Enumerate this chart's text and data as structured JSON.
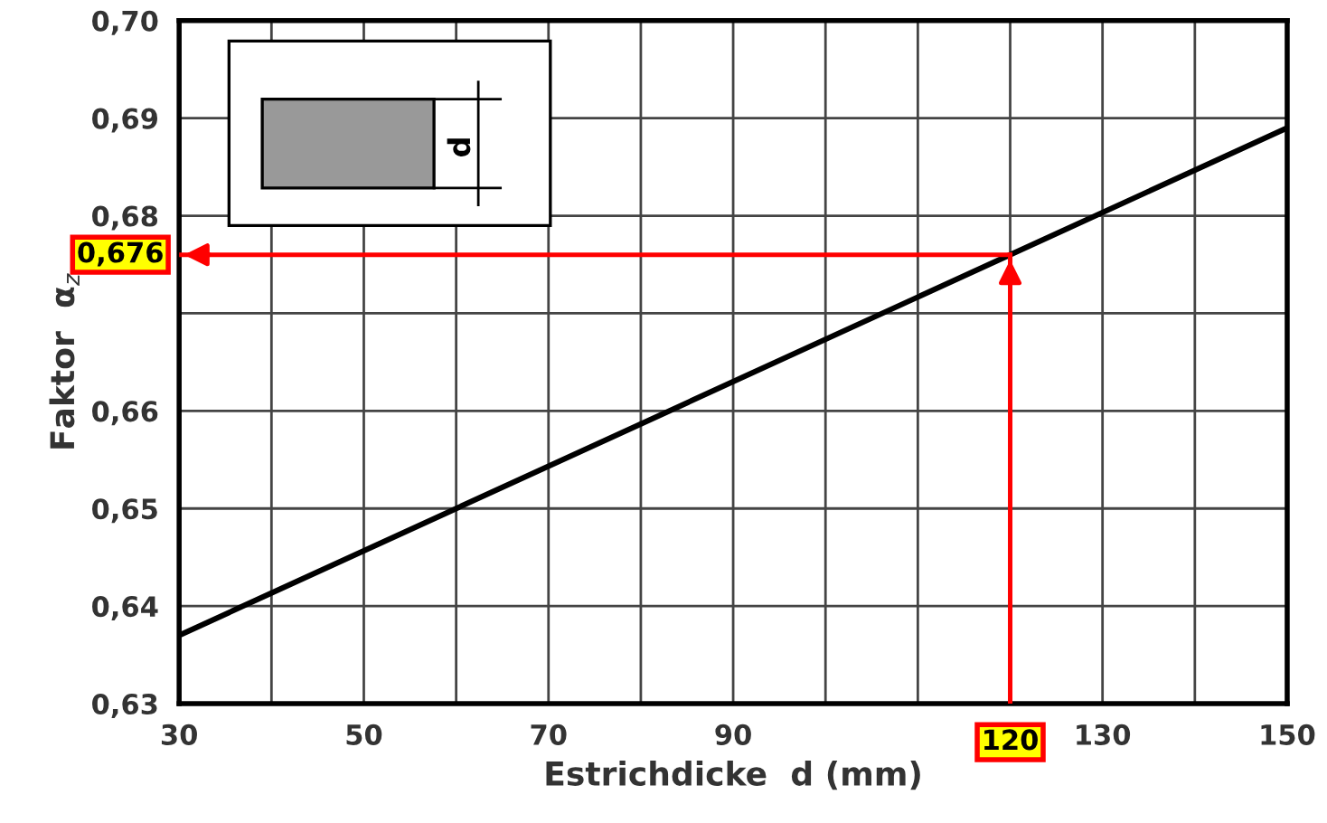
{
  "chart_data": {
    "type": "line",
    "xlabel": "Estrichdicke  d (mm)",
    "ylabel": "Faktor  α$_{z}$",
    "x": [
      30,
      150
    ],
    "series": [
      {
        "color": "#000000",
        "values": [
          0.637,
          0.689
        ]
      }
    ],
    "xlim": [
      30,
      150
    ],
    "ylim": [
      0.63,
      0.7
    ],
    "xticks": [
      30,
      {
        "value": 40,
        "label": null
      },
      50,
      {
        "value": 60,
        "label": null
      },
      70,
      {
        "value": 80,
        "label": null
      },
      90,
      {
        "value": 100,
        "label": null
      },
      {
        "value": 110,
        "label": null
      },
      {
        "value": 120,
        "label": null
      },
      130,
      {
        "value": 140,
        "label": null
      },
      150
    ],
    "yticks": [
      {
        "value": 0.63,
        "label": "0,63"
      },
      {
        "value": 0.64,
        "label": "0,64"
      },
      {
        "value": 0.65,
        "label": "0,65"
      },
      {
        "value": 0.66,
        "label": "0,66"
      },
      {
        "value": 0.67,
        "label": null
      },
      {
        "value": 0.68,
        "label": "0,68"
      },
      {
        "value": 0.69,
        "label": "0,69"
      },
      {
        "value": 0.7,
        "label": "0,70"
      }
    ],
    "ref_lines": [
      {
        "axis": "y",
        "value": 0.676,
        "label": "0,676",
        "color": "#ff0000"
      },
      {
        "axis": "x",
        "value": 120,
        "label": "120",
        "color": "#ff0000"
      }
    ],
    "annotations": [
      "d"
    ],
    "grid": true,
    "legend": false,
    "marker": "none",
    "line_style": "solid"
  }
}
